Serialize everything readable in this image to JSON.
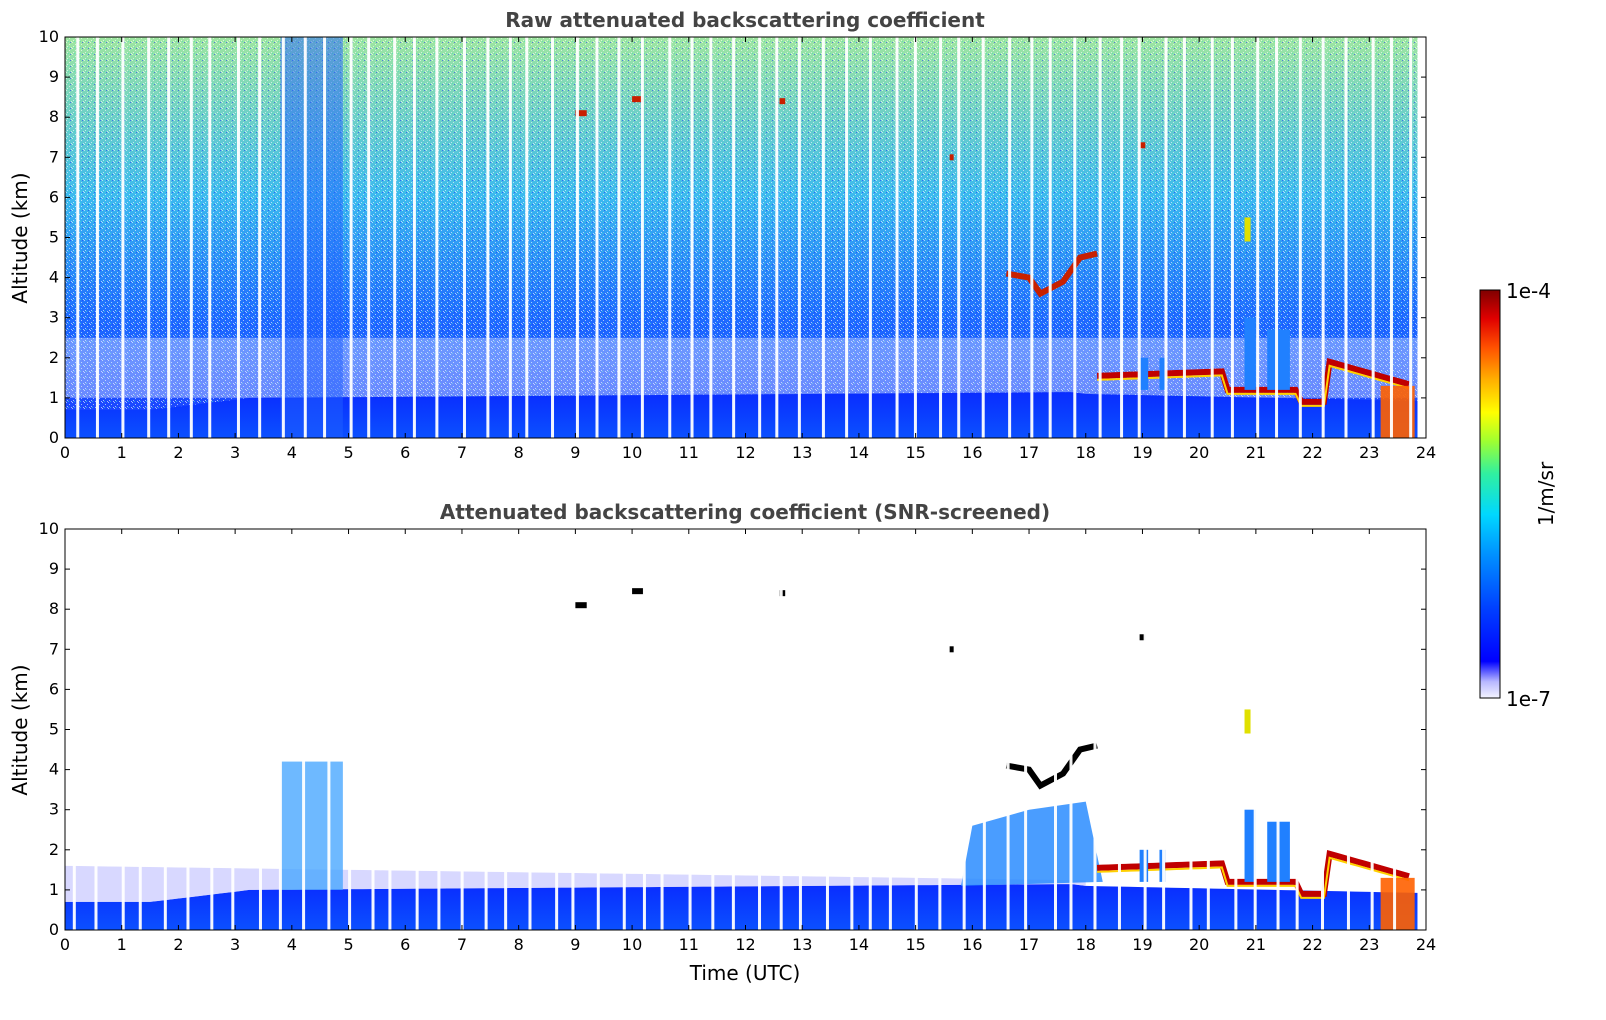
{
  "chart_data": [
    {
      "type": "heatmap",
      "title": "Raw attenuated backscattering coefficient",
      "xlabel": "",
      "ylabel": "Altitude (km)",
      "xlim": [
        0,
        24
      ],
      "ylim": [
        0,
        10
      ],
      "xticks": [
        "0",
        "1",
        "2",
        "3",
        "4",
        "5",
        "6",
        "7",
        "8",
        "9",
        "10",
        "11",
        "12",
        "13",
        "14",
        "15",
        "16",
        "17",
        "18",
        "19",
        "20",
        "21",
        "22",
        "23",
        "24"
      ],
      "yticks": [
        "0",
        "1",
        "2",
        "3",
        "4",
        "5",
        "6",
        "7",
        "8",
        "9",
        "10"
      ],
      "features": [
        {
          "name": "boundary-layer",
          "x": [
            0,
            24
          ],
          "top_km": [
            0.7,
            1.0
          ]
        },
        {
          "name": "cloud-8km-9UTC",
          "x": 9.1,
          "y": 8.1
        },
        {
          "name": "cloud-8.4km-10UTC",
          "x": 10.1,
          "y": 8.45
        },
        {
          "name": "cloud-8.4km-12.6UTC",
          "x": 12.65,
          "y": 8.4
        },
        {
          "name": "cloud-4km-17UTC",
          "x": [
            16.6,
            18.2
          ],
          "y": [
            3.5,
            4.6
          ]
        },
        {
          "name": "cloud-1.5km-18-23UTC",
          "x": [
            18.2,
            23.8
          ],
          "y": [
            0.8,
            1.9
          ]
        },
        {
          "name": "cloud-7.3km-19UTC",
          "x": 19.0,
          "y": 7.3
        },
        {
          "name": "cloud-5km-21UTC",
          "x": 20.8,
          "y": 5.2
        }
      ]
    },
    {
      "type": "heatmap",
      "title": "Attenuated backscattering coefficient (SNR-screened)",
      "xlabel": "Time (UTC)",
      "ylabel": "Altitude (km)",
      "xlim": [
        0,
        24
      ],
      "ylim": [
        0,
        10
      ],
      "xticks": [
        "0",
        "1",
        "2",
        "3",
        "4",
        "5",
        "6",
        "7",
        "8",
        "9",
        "10",
        "11",
        "12",
        "13",
        "14",
        "15",
        "16",
        "17",
        "18",
        "19",
        "20",
        "21",
        "22",
        "23",
        "24"
      ],
      "yticks": [
        "0",
        "1",
        "2",
        "3",
        "4",
        "5",
        "6",
        "7",
        "8",
        "9",
        "10"
      ],
      "features": [
        {
          "name": "boundary-layer",
          "x": [
            0,
            24
          ],
          "top_km": [
            0.7,
            1.0
          ]
        },
        {
          "name": "residual-layer",
          "x": [
            0,
            18
          ],
          "top_km": [
            1.6,
            1.2
          ]
        },
        {
          "name": "cloud-4km-17UTC",
          "x": [
            16.6,
            18.2
          ],
          "y": [
            3.5,
            4.6
          ]
        },
        {
          "name": "cloud-1.5km-18-23UTC",
          "x": [
            18.2,
            23.8
          ],
          "y": [
            0.8,
            1.9
          ]
        }
      ]
    }
  ],
  "colorbar": {
    "label": "1/m/sr",
    "max_label": "1e-4",
    "min_label": "1e-7",
    "colors": [
      "#f0f0ff",
      "#c8c8ff",
      "#0000ff",
      "#0050ff",
      "#00a0ff",
      "#00e0e0",
      "#40ff80",
      "#c0ff00",
      "#ffff00",
      "#ffa000",
      "#ff4000",
      "#e00000",
      "#800000"
    ]
  }
}
